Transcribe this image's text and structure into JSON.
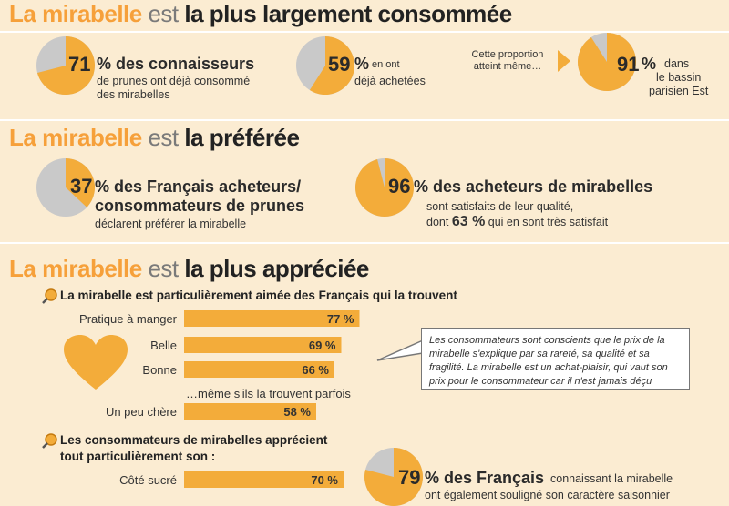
{
  "colors": {
    "background": "#fbecd2",
    "accent": "#f3ac3a",
    "pie_gray": "#c9c9c9",
    "heading_orange": "#f6a03a"
  },
  "section1": {
    "title_a": "La mirabelle",
    "title_b": "est",
    "title_c": "la plus largement consommée",
    "stat1": {
      "value": "71",
      "headline": "% des connaisseurs",
      "detail_1": "de prunes ont déjà consommé",
      "detail_2": "des mirabelles"
    },
    "stat2": {
      "value": "59",
      "headline": "%",
      "detail_1": "en ont",
      "detail_2": "déjà achetées"
    },
    "stat3": {
      "lead_1": "Cette proportion",
      "lead_2": "atteint même…",
      "value": "91",
      "headline": "%",
      "detail_1": "dans",
      "detail_2": "le bassin",
      "detail_3": "parisien Est"
    }
  },
  "section2": {
    "title_a": "La mirabelle",
    "title_b": "est",
    "title_c": "la préférée",
    "stat1": {
      "value": "37",
      "headline_1": "% des Français acheteurs/",
      "headline_2": "consommateurs de prunes",
      "detail": "déclarent préférer la mirabelle"
    },
    "stat2": {
      "value": "96",
      "headline": "% des acheteurs de mirabelles",
      "detail_1": "sont satisfaits de leur qualité,",
      "detail_2_a": "dont",
      "detail_2_b": "63 %",
      "detail_2_c": "qui en sont très satisfait"
    }
  },
  "section3": {
    "title_a": "La mirabelle",
    "title_b": "est",
    "title_c": "la plus appréciée",
    "sub1": "La mirabelle est particulièrement aimée des Français qui la trouvent",
    "bars_note": "…même s'ils la trouvent parfois",
    "quote": "Les consommateurs sont conscients que le prix de la mirabelle s'explique par sa rareté, sa qualité et sa fragilité. La mirabelle est un achat-plaisir, qui vaut son prix pour le consommateur car il n'est jamais déçu",
    "sub2_1": "Les consommateurs de mirabelles apprécient",
    "sub2_2": "tout particulièrement son :",
    "stat3": {
      "value": "79",
      "headline": "% des Français",
      "detail_1": "connaissant la mirabelle",
      "detail_2": "ont également souligné son caractère saisonnier"
    }
  },
  "chart_data": [
    {
      "type": "pie",
      "values": [
        71,
        29
      ],
      "categories": [
        "consommé",
        "autre"
      ]
    },
    {
      "type": "pie",
      "values": [
        59,
        41
      ],
      "categories": [
        "achetées",
        "autre"
      ]
    },
    {
      "type": "pie",
      "values": [
        91,
        9
      ],
      "categories": [
        "bassin parisien Est",
        "autre"
      ]
    },
    {
      "type": "pie",
      "values": [
        37,
        63
      ],
      "categories": [
        "préfèrent la mirabelle",
        "autre"
      ]
    },
    {
      "type": "pie",
      "values": [
        96,
        4
      ],
      "categories": [
        "satisfaits",
        "autre"
      ]
    },
    {
      "type": "pie",
      "values": [
        79,
        21
      ],
      "categories": [
        "caractère saisonnier",
        "autre"
      ]
    },
    {
      "type": "bar",
      "categories": [
        "Pratique à manger",
        "Belle",
        "Bonne",
        "Un peu chère"
      ],
      "values": [
        77,
        69,
        66,
        58
      ],
      "value_labels": [
        "77 %",
        "69 %",
        "66 %",
        "58 %"
      ]
    },
    {
      "type": "bar",
      "categories": [
        "Côté sucré"
      ],
      "values": [
        70
      ],
      "value_labels": [
        "70 %"
      ]
    }
  ]
}
